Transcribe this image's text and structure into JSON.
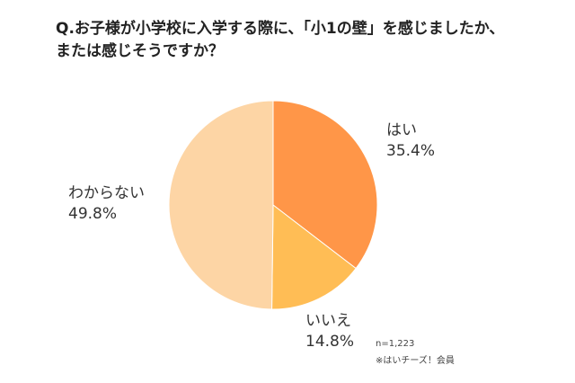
{
  "title": {
    "line1": "Q.お子様が小学校に入学する際に、「小1の壁」を感じましたか、",
    "line2": "または感じそうですか？"
  },
  "chart_data": {
    "type": "pie",
    "title": "Q.お子様が小学校に入学する際に、「小1の壁」を感じましたか、または感じそうですか？",
    "slices": [
      {
        "label": "はい",
        "value": 35.4,
        "display": "35.4%",
        "color": "#ff9648"
      },
      {
        "label": "いいえ",
        "value": 14.8,
        "display": "14.8%",
        "color": "#ffbd55"
      },
      {
        "label": "わからない",
        "value": 49.8,
        "display": "49.8%",
        "color": "#fdd5a5"
      }
    ],
    "start": "top",
    "direction": "clockwise"
  },
  "notes": {
    "sample_size": "n=1,223",
    "source": "※はいチーズ！会員"
  }
}
